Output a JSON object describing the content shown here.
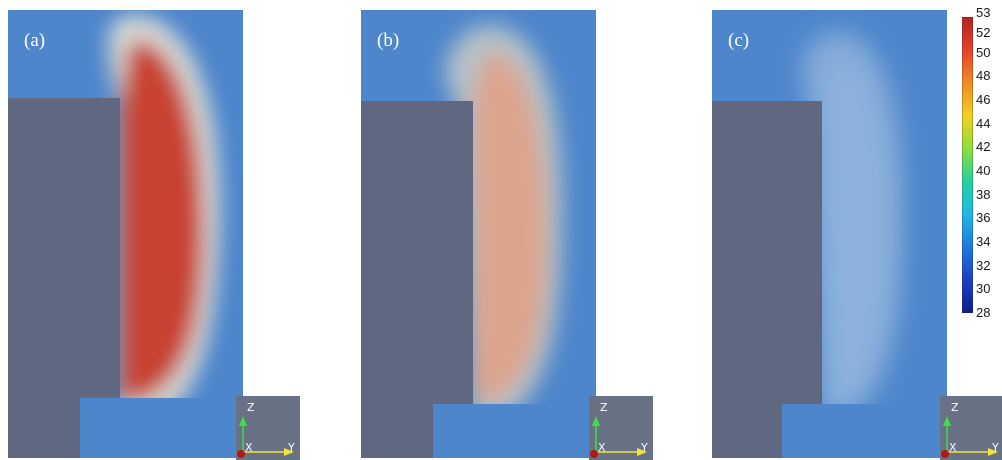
{
  "panels": [
    {
      "label": "(a)",
      "plume_color": "#c84232",
      "plume_opacity": 1.0
    },
    {
      "label": "(b)",
      "plume_color": "#dca48c",
      "plume_opacity": 1.0
    },
    {
      "label": "(c)",
      "plume_color": "#8fb4dc",
      "plume_opacity": 0.75
    }
  ],
  "axes_triad": {
    "z": "Z",
    "x": "X",
    "y": "Y"
  },
  "colorbar": {
    "ticks": [
      "53",
      "52",
      "50",
      "48",
      "46",
      "44",
      "42",
      "40",
      "38",
      "36",
      "34",
      "32",
      "30",
      "28"
    ],
    "min": 28,
    "max": 53,
    "colors": [
      "#b22222",
      "#e8402a",
      "#f08a24",
      "#f5d020",
      "#8be03a",
      "#22d3a0",
      "#1fb8e8",
      "#1e78e0",
      "#1a3fc8",
      "#0c1f8c"
    ]
  },
  "colors": {
    "background": "#4d86cb",
    "solid": "#5f6880"
  }
}
